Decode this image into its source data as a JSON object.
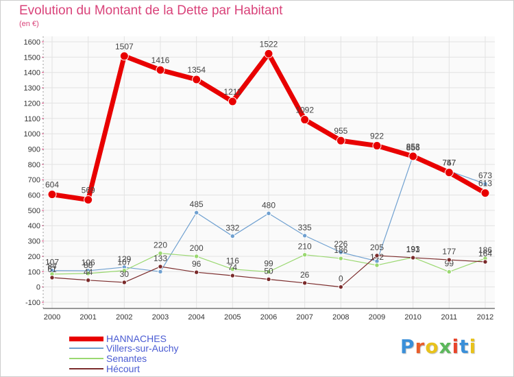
{
  "title": "Evolution du Montant de la Dette par Habitant",
  "subtitle": "(en €)",
  "logo": {
    "text": "Proxiti",
    "colors": [
      "#3a8fd9",
      "#e85d2a",
      "#e8c21c",
      "#5cb85c",
      "#e8442a",
      "#3a8fd9",
      "#e8c21c"
    ]
  },
  "chart_data": {
    "type": "line",
    "x": [
      "2000",
      "2001",
      "2002",
      "2003",
      "2004",
      "2005",
      "2006",
      "2007",
      "2008",
      "2009",
      "2010",
      "2011",
      "2012"
    ],
    "ylim": [
      -100,
      1600
    ],
    "yticks": [
      "-100",
      "0",
      "100",
      "200",
      "300",
      "400",
      "500",
      "600",
      "700",
      "800",
      "900",
      "1000",
      "1100",
      "1200",
      "1300",
      "1400",
      "1500",
      "1600"
    ],
    "grid": true,
    "legend": "bottom-left",
    "series": [
      {
        "name": "Villers-sur-Auchy",
        "color": "#6fa0d0",
        "width": 1.2,
        "markerR": 3.2,
        "values": [
          107,
          106,
          129,
          100,
          485,
          332,
          480,
          335,
          226,
          168,
          856,
          757,
          673
        ],
        "labels": [
          "107",
          "106",
          "129",
          "",
          "485",
          "332",
          "480",
          "335",
          "226",
          "",
          "856",
          "757",
          "673"
        ]
      },
      {
        "name": "Senantes",
        "color": "#9ad870",
        "width": 1.2,
        "markerR": 3.2,
        "values": [
          84,
          88,
          107,
          220,
          200,
          116,
          99,
          210,
          186,
          142,
          193,
          99,
          186
        ],
        "labels": [
          "84",
          "88",
          "107",
          "220",
          "200",
          "116",
          "99",
          "210",
          "186",
          "142",
          "193",
          "99",
          "186"
        ]
      },
      {
        "name": "Hécourt",
        "color": "#7a2a2a",
        "width": 1.2,
        "markerR": 3.2,
        "values": [
          61,
          44,
          30,
          133,
          96,
          74,
          50,
          26,
          0,
          205,
          191,
          177,
          164
        ],
        "labels": [
          "61",
          "44",
          "30",
          "133",
          "96",
          "74",
          "50",
          "26",
          "0",
          "205",
          "191",
          "177",
          "164"
        ]
      },
      {
        "name": "HANNACHES",
        "color": "#e80000",
        "width": 7,
        "markerR": 6,
        "values": [
          604,
          569,
          1507,
          1416,
          1354,
          1211,
          1522,
          1092,
          955,
          922,
          853,
          747,
          613
        ],
        "labels": [
          "604",
          "569",
          "1507",
          "1416",
          "1354",
          "1211",
          "1522",
          "1092",
          "955",
          "922",
          "853",
          "747",
          "613"
        ]
      }
    ]
  },
  "legend_items": [
    {
      "name": "HANNACHES",
      "color": "#e80000",
      "thickness": 7
    },
    {
      "name": "Villers-sur-Auchy",
      "color": "#6fa0d0",
      "thickness": 2
    },
    {
      "name": "Senantes",
      "color": "#9ad870",
      "thickness": 2
    },
    {
      "name": "Hécourt",
      "color": "#7a2a2a",
      "thickness": 2
    }
  ]
}
